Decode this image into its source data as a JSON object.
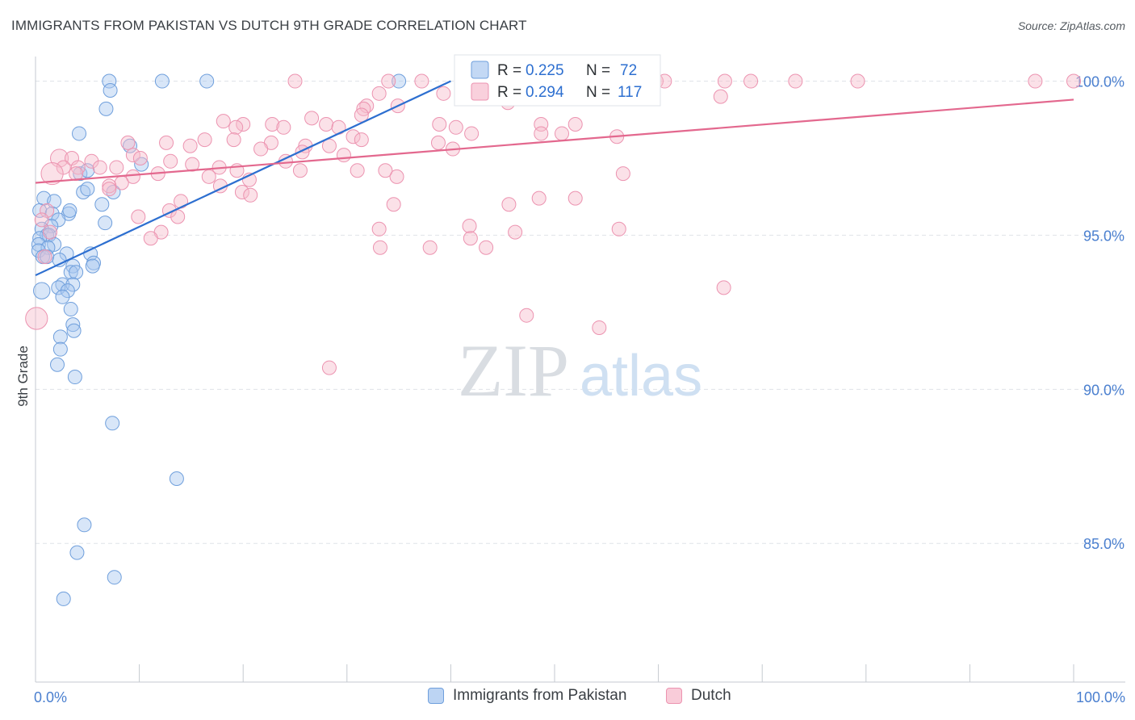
{
  "title": "IMMIGRANTS FROM PAKISTAN VS DUTCH 9TH GRADE CORRELATION CHART",
  "source": "Source: ZipAtlas.com",
  "watermark": {
    "zip": "ZIP",
    "atlas": "atlas"
  },
  "colors": {
    "blue": "#6f9fdc",
    "blue_fill": "#a9c8f0",
    "blue_line": "#2d6fd0",
    "pink": "#ec93b0",
    "pink_fill": "#f6bccd",
    "pink_line": "#e3688e",
    "axis_label": "#4a7fcf",
    "grid": "#dfe3e8"
  },
  "legend_top": {
    "rows": [
      {
        "series": "Immigrants from Pakistan",
        "r_label": "R =",
        "r_value": "0.225",
        "n_label": "N =",
        "n_value": "72"
      },
      {
        "series": "Dutch",
        "r_label": "R =",
        "r_value": "0.294",
        "n_label": "N =",
        "n_value": "117"
      }
    ]
  },
  "legend_bottom": [
    {
      "label": "Immigrants from Pakistan"
    },
    {
      "label": "Dutch"
    }
  ],
  "chart_data": {
    "type": "scatter",
    "title": "IMMIGRANTS FROM PAKISTAN VS DUTCH 9TH GRADE CORRELATION CHART",
    "xlabel": "",
    "ylabel": "9th Grade",
    "xlim": [
      0,
      100
    ],
    "ylim": [
      80.5,
      100.8
    ],
    "x_tick_labels": [
      {
        "value": 0,
        "label": "0.0%"
      },
      {
        "value": 100,
        "label": "100.0%"
      }
    ],
    "y_tick_labels": [
      {
        "value": 100,
        "label": "100.0%"
      },
      {
        "value": 95,
        "label": "95.0%"
      },
      {
        "value": 90,
        "label": "90.0%"
      },
      {
        "value": 85,
        "label": "85.0%"
      }
    ],
    "series": [
      {
        "name": "Immigrants from Pakistan",
        "color": "blue",
        "trend": {
          "x": [
            0,
            40
          ],
          "y": [
            93.7,
            100.0
          ]
        },
        "points": [
          {
            "x": 7.1,
            "y": 100.0,
            "s": 1
          },
          {
            "x": 7.2,
            "y": 99.7,
            "s": 1
          },
          {
            "x": 12.2,
            "y": 100.0,
            "s": 1
          },
          {
            "x": 16.5,
            "y": 100.0,
            "s": 1
          },
          {
            "x": 35.0,
            "y": 100.0,
            "s": 1
          },
          {
            "x": 6.8,
            "y": 99.1,
            "s": 1
          },
          {
            "x": 4.2,
            "y": 98.3,
            "s": 1
          },
          {
            "x": 9.1,
            "y": 97.9,
            "s": 1
          },
          {
            "x": 10.2,
            "y": 97.3,
            "s": 1
          },
          {
            "x": 4.3,
            "y": 97.0,
            "s": 1
          },
          {
            "x": 5.0,
            "y": 97.1,
            "s": 1
          },
          {
            "x": 4.6,
            "y": 96.4,
            "s": 1
          },
          {
            "x": 5.0,
            "y": 96.5,
            "s": 1
          },
          {
            "x": 7.5,
            "y": 96.4,
            "s": 1
          },
          {
            "x": 6.4,
            "y": 96.0,
            "s": 1
          },
          {
            "x": 0.8,
            "y": 96.2,
            "s": 1
          },
          {
            "x": 1.8,
            "y": 96.1,
            "s": 1
          },
          {
            "x": 0.4,
            "y": 95.8,
            "s": 1
          },
          {
            "x": 1.6,
            "y": 95.7,
            "s": 1
          },
          {
            "x": 3.2,
            "y": 95.7,
            "s": 1
          },
          {
            "x": 3.3,
            "y": 95.8,
            "s": 1
          },
          {
            "x": 2.2,
            "y": 95.5,
            "s": 1
          },
          {
            "x": 6.7,
            "y": 95.4,
            "s": 1
          },
          {
            "x": 1.5,
            "y": 95.3,
            "s": 1
          },
          {
            "x": 0.6,
            "y": 95.2,
            "s": 1
          },
          {
            "x": 1.1,
            "y": 95.0,
            "s": 1
          },
          {
            "x": 1.3,
            "y": 95.0,
            "s": 1
          },
          {
            "x": 0.4,
            "y": 94.9,
            "s": 1
          },
          {
            "x": 0.3,
            "y": 94.7,
            "s": 1
          },
          {
            "x": 1.8,
            "y": 94.7,
            "s": 1
          },
          {
            "x": 1.2,
            "y": 94.6,
            "s": 1
          },
          {
            "x": 0.3,
            "y": 94.5,
            "s": 1
          },
          {
            "x": 3.0,
            "y": 94.4,
            "s": 1
          },
          {
            "x": 0.7,
            "y": 94.3,
            "s": 1
          },
          {
            "x": 1.1,
            "y": 94.3,
            "s": 1
          },
          {
            "x": 2.3,
            "y": 94.2,
            "s": 1
          },
          {
            "x": 5.3,
            "y": 94.4,
            "s": 1
          },
          {
            "x": 5.6,
            "y": 94.1,
            "s": 1
          },
          {
            "x": 5.5,
            "y": 94.0,
            "s": 1
          },
          {
            "x": 3.6,
            "y": 94.0,
            "s": 1
          },
          {
            "x": 3.4,
            "y": 93.8,
            "s": 1
          },
          {
            "x": 3.9,
            "y": 93.8,
            "s": 1
          },
          {
            "x": 2.6,
            "y": 93.4,
            "s": 1
          },
          {
            "x": 3.6,
            "y": 93.4,
            "s": 1
          },
          {
            "x": 2.2,
            "y": 93.3,
            "s": 1
          },
          {
            "x": 0.6,
            "y": 93.2,
            "s": 1.2
          },
          {
            "x": 3.1,
            "y": 93.2,
            "s": 1
          },
          {
            "x": 2.6,
            "y": 93.0,
            "s": 1
          },
          {
            "x": 3.4,
            "y": 92.6,
            "s": 1
          },
          {
            "x": 3.6,
            "y": 92.1,
            "s": 1
          },
          {
            "x": 3.7,
            "y": 91.9,
            "s": 1
          },
          {
            "x": 2.4,
            "y": 91.7,
            "s": 1
          },
          {
            "x": 2.4,
            "y": 91.3,
            "s": 1
          },
          {
            "x": 2.1,
            "y": 90.8,
            "s": 1
          },
          {
            "x": 3.8,
            "y": 90.4,
            "s": 1
          },
          {
            "x": 7.4,
            "y": 88.9,
            "s": 1
          },
          {
            "x": 13.6,
            "y": 87.1,
            "s": 1
          },
          {
            "x": 4.7,
            "y": 85.6,
            "s": 1
          },
          {
            "x": 4.0,
            "y": 84.7,
            "s": 1
          },
          {
            "x": 7.6,
            "y": 83.9,
            "s": 1
          },
          {
            "x": 2.7,
            "y": 83.2,
            "s": 1
          }
        ]
      },
      {
        "name": "Dutch",
        "color": "pink",
        "trend": {
          "x": [
            0,
            100
          ],
          "y": [
            96.7,
            99.4
          ]
        },
        "points": [
          {
            "x": 25.0,
            "y": 100.0,
            "s": 1
          },
          {
            "x": 34.0,
            "y": 100.0,
            "s": 1
          },
          {
            "x": 37.2,
            "y": 100.0,
            "s": 1
          },
          {
            "x": 43.2,
            "y": 100.0,
            "s": 1
          },
          {
            "x": 44.4,
            "y": 100.0,
            "s": 1
          },
          {
            "x": 59.8,
            "y": 100.0,
            "s": 1
          },
          {
            "x": 58.6,
            "y": 100.0,
            "s": 1
          },
          {
            "x": 60.6,
            "y": 100.0,
            "s": 1
          },
          {
            "x": 66.4,
            "y": 100.0,
            "s": 1
          },
          {
            "x": 68.9,
            "y": 100.0,
            "s": 1
          },
          {
            "x": 73.2,
            "y": 100.0,
            "s": 1
          },
          {
            "x": 79.2,
            "y": 100.0,
            "s": 1
          },
          {
            "x": 96.3,
            "y": 100.0,
            "s": 1
          },
          {
            "x": 100.0,
            "y": 100.0,
            "s": 1
          },
          {
            "x": 54.7,
            "y": 99.6,
            "s": 1
          },
          {
            "x": 55.4,
            "y": 99.7,
            "s": 1
          },
          {
            "x": 66.0,
            "y": 99.5,
            "s": 1
          },
          {
            "x": 33.1,
            "y": 99.6,
            "s": 1
          },
          {
            "x": 31.9,
            "y": 99.2,
            "s": 1
          },
          {
            "x": 34.9,
            "y": 99.2,
            "s": 1
          },
          {
            "x": 39.3,
            "y": 99.6,
            "s": 1
          },
          {
            "x": 31.6,
            "y": 99.1,
            "s": 1
          },
          {
            "x": 45.5,
            "y": 99.3,
            "s": 1
          },
          {
            "x": 31.4,
            "y": 98.9,
            "s": 1
          },
          {
            "x": 26.6,
            "y": 98.8,
            "s": 1
          },
          {
            "x": 18.1,
            "y": 98.7,
            "s": 1
          },
          {
            "x": 20.0,
            "y": 98.6,
            "s": 1
          },
          {
            "x": 22.8,
            "y": 98.6,
            "s": 1
          },
          {
            "x": 28.0,
            "y": 98.6,
            "s": 1
          },
          {
            "x": 29.2,
            "y": 98.5,
            "s": 1
          },
          {
            "x": 38.9,
            "y": 98.6,
            "s": 1
          },
          {
            "x": 48.7,
            "y": 98.6,
            "s": 1
          },
          {
            "x": 40.5,
            "y": 98.5,
            "s": 1
          },
          {
            "x": 19.3,
            "y": 98.5,
            "s": 1
          },
          {
            "x": 23.9,
            "y": 98.5,
            "s": 1
          },
          {
            "x": 52.0,
            "y": 98.6,
            "s": 1
          },
          {
            "x": 48.7,
            "y": 98.3,
            "s": 1
          },
          {
            "x": 30.6,
            "y": 98.2,
            "s": 1
          },
          {
            "x": 22.7,
            "y": 98.0,
            "s": 1
          },
          {
            "x": 19.1,
            "y": 98.1,
            "s": 1
          },
          {
            "x": 8.9,
            "y": 98.0,
            "s": 1
          },
          {
            "x": 12.6,
            "y": 98.0,
            "s": 1
          },
          {
            "x": 16.3,
            "y": 98.1,
            "s": 1
          },
          {
            "x": 31.4,
            "y": 98.1,
            "s": 1
          },
          {
            "x": 38.8,
            "y": 98.0,
            "s": 1
          },
          {
            "x": 50.7,
            "y": 98.3,
            "s": 1
          },
          {
            "x": 42.0,
            "y": 98.3,
            "s": 1
          },
          {
            "x": 56.0,
            "y": 98.2,
            "s": 1
          },
          {
            "x": 26.0,
            "y": 97.9,
            "s": 1
          },
          {
            "x": 28.3,
            "y": 97.9,
            "s": 1
          },
          {
            "x": 14.9,
            "y": 97.9,
            "s": 1
          },
          {
            "x": 21.7,
            "y": 97.8,
            "s": 1
          },
          {
            "x": 25.7,
            "y": 97.7,
            "s": 1
          },
          {
            "x": 40.2,
            "y": 97.8,
            "s": 1
          },
          {
            "x": 9.4,
            "y": 97.6,
            "s": 1
          },
          {
            "x": 29.7,
            "y": 97.6,
            "s": 1
          },
          {
            "x": 24.1,
            "y": 97.4,
            "s": 1
          },
          {
            "x": 10.1,
            "y": 97.5,
            "s": 1
          },
          {
            "x": 13.0,
            "y": 97.4,
            "s": 1
          },
          {
            "x": 2.3,
            "y": 97.5,
            "s": 1.3
          },
          {
            "x": 3.5,
            "y": 97.5,
            "s": 1
          },
          {
            "x": 15.1,
            "y": 97.3,
            "s": 1
          },
          {
            "x": 5.4,
            "y": 97.4,
            "s": 1
          },
          {
            "x": 4.1,
            "y": 97.2,
            "s": 1
          },
          {
            "x": 6.2,
            "y": 97.2,
            "s": 1
          },
          {
            "x": 7.8,
            "y": 97.2,
            "s": 1
          },
          {
            "x": 17.7,
            "y": 97.2,
            "s": 1
          },
          {
            "x": 19.4,
            "y": 97.1,
            "s": 1
          },
          {
            "x": 25.5,
            "y": 97.1,
            "s": 1
          },
          {
            "x": 31.0,
            "y": 97.1,
            "s": 1
          },
          {
            "x": 2.7,
            "y": 97.2,
            "s": 1
          },
          {
            "x": 3.9,
            "y": 97.0,
            "s": 1
          },
          {
            "x": 11.8,
            "y": 97.0,
            "s": 1
          },
          {
            "x": 1.6,
            "y": 97.0,
            "s": 1.6
          },
          {
            "x": 20.6,
            "y": 96.8,
            "s": 1
          },
          {
            "x": 16.7,
            "y": 96.9,
            "s": 1
          },
          {
            "x": 9.4,
            "y": 96.9,
            "s": 1
          },
          {
            "x": 8.3,
            "y": 96.7,
            "s": 1
          },
          {
            "x": 7.1,
            "y": 96.6,
            "s": 1
          },
          {
            "x": 17.8,
            "y": 96.6,
            "s": 1
          },
          {
            "x": 34.8,
            "y": 96.9,
            "s": 1
          },
          {
            "x": 33.7,
            "y": 97.1,
            "s": 1
          },
          {
            "x": 56.6,
            "y": 97.0,
            "s": 1
          },
          {
            "x": 7.1,
            "y": 96.5,
            "s": 1
          },
          {
            "x": 19.9,
            "y": 96.4,
            "s": 1
          },
          {
            "x": 20.7,
            "y": 96.3,
            "s": 1
          },
          {
            "x": 14.0,
            "y": 96.1,
            "s": 1
          },
          {
            "x": 34.5,
            "y": 96.0,
            "s": 1
          },
          {
            "x": 45.6,
            "y": 96.0,
            "s": 1
          },
          {
            "x": 48.5,
            "y": 96.2,
            "s": 1
          },
          {
            "x": 52.0,
            "y": 96.2,
            "s": 1
          },
          {
            "x": 12.9,
            "y": 95.8,
            "s": 1
          },
          {
            "x": 9.9,
            "y": 95.6,
            "s": 1
          },
          {
            "x": 13.7,
            "y": 95.6,
            "s": 1
          },
          {
            "x": 1.1,
            "y": 95.8,
            "s": 1
          },
          {
            "x": 0.6,
            "y": 95.5,
            "s": 1
          },
          {
            "x": 1.4,
            "y": 95.1,
            "s": 1
          },
          {
            "x": 12.1,
            "y": 95.1,
            "s": 1
          },
          {
            "x": 11.1,
            "y": 94.9,
            "s": 1
          },
          {
            "x": 33.1,
            "y": 95.2,
            "s": 1
          },
          {
            "x": 41.8,
            "y": 95.3,
            "s": 1
          },
          {
            "x": 56.2,
            "y": 95.2,
            "s": 1
          },
          {
            "x": 46.2,
            "y": 95.1,
            "s": 1
          },
          {
            "x": 41.9,
            "y": 94.9,
            "s": 1
          },
          {
            "x": 43.4,
            "y": 94.6,
            "s": 1
          },
          {
            "x": 38.0,
            "y": 94.6,
            "s": 1
          },
          {
            "x": 33.2,
            "y": 94.6,
            "s": 1
          },
          {
            "x": 0.9,
            "y": 94.3,
            "s": 1
          },
          {
            "x": 66.3,
            "y": 93.3,
            "s": 1
          },
          {
            "x": 47.3,
            "y": 92.4,
            "s": 1
          },
          {
            "x": 54.3,
            "y": 92.0,
            "s": 1
          },
          {
            "x": 0.1,
            "y": 92.3,
            "s": 1.6
          },
          {
            "x": 28.3,
            "y": 90.7,
            "s": 1
          }
        ]
      }
    ]
  }
}
